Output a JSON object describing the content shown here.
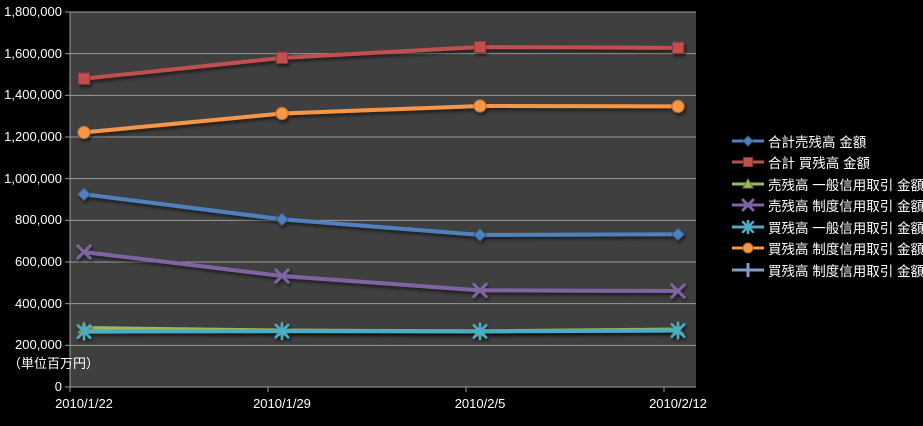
{
  "chart": {
    "background": "#000000",
    "plot_background": "#3F3F3F",
    "gridline_color": "#9C9C9C",
    "axis_line_color": "#9C9C9C",
    "text_color": "#FFFFFF"
  },
  "chart_data": {
    "type": "line",
    "title": "",
    "unit_label": "（単位百万円）",
    "categories": [
      "2010/1/22",
      "2010/1/29",
      "2010/2/5",
      "2010/2/12"
    ],
    "series": [
      {
        "name": "合計売残高 金額",
        "color": "#4F81BD",
        "marker": "diamond",
        "values": [
          925000,
          805000,
          730000,
          733000
        ]
      },
      {
        "name": "合計 買残高 金額",
        "color": "#C0504D",
        "marker": "square",
        "values": [
          1480000,
          1580000,
          1632000,
          1628000
        ]
      },
      {
        "name": "売残高 一般信用取引 金額",
        "color": "#9BBB59",
        "marker": "triangle",
        "values": [
          283000,
          271000,
          267000,
          276000
        ]
      },
      {
        "name": "売残高 制度信用取引 金額",
        "color": "#8064A2",
        "marker": "x",
        "values": [
          648000,
          533000,
          464000,
          461000
        ]
      },
      {
        "name": "買残高 一般信用取引 金額",
        "color": "#4BACC6",
        "marker": "asterisk",
        "values": [
          266000,
          268000,
          267000,
          271000
        ]
      },
      {
        "name": "買残高 制度信用取引 金額",
        "color": "#F79646",
        "marker": "circle",
        "values": [
          1222000,
          1313000,
          1349000,
          1347000
        ]
      },
      {
        "name": "買残高 制度信用取引 金額",
        "color": "#7F9DC3",
        "marker": "plus",
        "values": null
      }
    ],
    "ylim": [
      0,
      1800000
    ],
    "ytick_step": 200000,
    "grid": true,
    "legend_position": "right"
  }
}
